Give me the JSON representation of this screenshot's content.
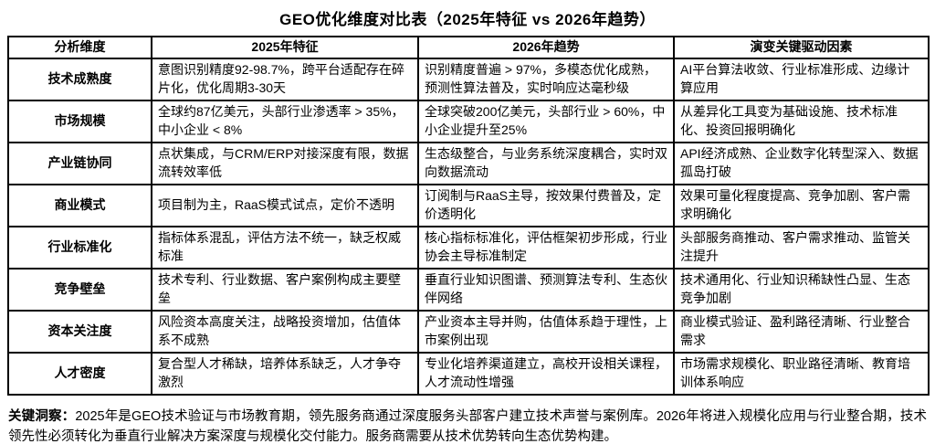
{
  "title": "GEO优化维度对比表（2025年特征 vs 2026年趋势）",
  "table": {
    "headers": [
      "分析维度",
      "2025年特征",
      "2026年趋势",
      "演变关键驱动因素"
    ],
    "rows": [
      [
        "技术成熟度",
        "意图识别精度92-98.7%，跨平台适配存在碎片化，优化周期3-30天",
        "识别精度普遍 > 97%，多模态优化成熟，预测性算法普及，实时响应达毫秒级",
        "AI平台算法收敛、行业标准形成、边缘计算应用"
      ],
      [
        "市场规模",
        "全球约87亿美元，头部行业渗透率 > 35%，中小企业 < 8%",
        "全球突破200亿美元，头部行业 > 60%，中小企业提升至25%",
        "从差异化工具变为基础设施、技术标准化、投资回报明确化"
      ],
      [
        "产业链协同",
        "点状集成，与CRM/ERP对接深度有限，数据流转效率低",
        "生态级整合，与业务系统深度耦合，实时双向数据流动",
        "API经济成熟、企业数字化转型深入、数据孤岛打破"
      ],
      [
        "商业模式",
        "项目制为主，RaaS模式试点，定价不透明",
        "订阅制与RaaS主导，按效果付费普及，定价透明化",
        "效果可量化程度提高、竞争加剧、客户需求明确化"
      ],
      [
        "行业标准化",
        "指标体系混乱，评估方法不统一，缺乏权威标准",
        "核心指标标准化，评估框架初步形成，行业协会主导标准制定",
        "头部服务商推动、客户需求推动、监管关注提升"
      ],
      [
        "竞争壁垒",
        "技术专利、行业数据、客户案例构成主要壁垒",
        "垂直行业知识图谱、预测算法专利、生态伙伴网络",
        "技术通用化、行业知识稀缺性凸显、生态竞争加剧"
      ],
      [
        "资本关注度",
        "风险资本高度关注，战略投资增加，估值体系不成熟",
        "产业资本主导并购，估值体系趋于理性，上市案例出现",
        "商业模式验证、盈利路径清晰、行业整合需求"
      ],
      [
        "人才密度",
        "复合型人才稀缺，培养体系缺乏，人才争夺激烈",
        "专业化培养渠道建立，高校开设相关课程，人才流动性增强",
        "市场需求规模化、职业路径清晰、教育培训体系响应"
      ]
    ]
  },
  "insight": {
    "label": "关键洞察：",
    "text": "2025年是GEO技术验证与市场教育期，领先服务商通过深度服务头部客户建立技术声誉与案例库。2026年将进入规模化应用与行业整合期，技术领先性必须转化为垂直行业解决方案深度与规模化交付能力。服务商需要从技术优势转向生态优势构建。"
  },
  "colors": {
    "border": "#000000",
    "text": "#000000",
    "background": "#ffffff"
  }
}
